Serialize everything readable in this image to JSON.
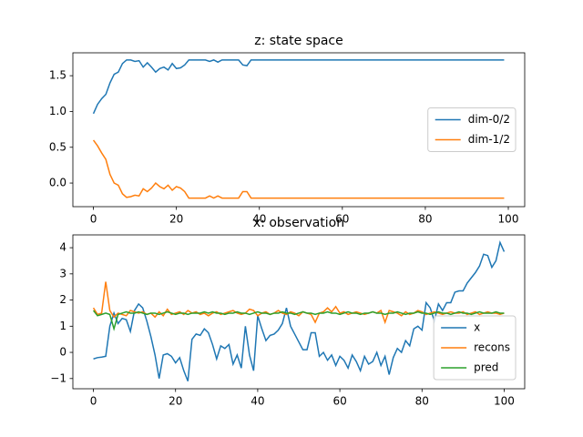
{
  "chart_data": [
    {
      "type": "line",
      "title": "z: state space",
      "x": [
        0,
        1,
        2,
        3,
        4,
        5,
        6,
        7,
        8,
        9,
        10,
        11,
        12,
        13,
        14,
        15,
        16,
        17,
        18,
        19,
        20,
        21,
        22,
        23,
        24,
        25,
        26,
        27,
        28,
        29,
        30,
        31,
        32,
        33,
        34,
        35,
        36,
        37,
        38,
        39,
        40,
        41,
        42,
        43,
        44,
        45,
        46,
        47,
        48,
        49,
        50,
        51,
        52,
        53,
        54,
        55,
        56,
        57,
        58,
        59,
        60,
        61,
        62,
        63,
        64,
        65,
        66,
        67,
        68,
        69,
        70,
        71,
        72,
        73,
        74,
        75,
        76,
        77,
        78,
        79,
        80,
        81,
        82,
        83,
        84,
        85,
        86,
        87,
        88,
        89,
        90,
        91,
        92,
        93,
        94,
        95,
        96,
        97,
        98,
        99
      ],
      "xlim": [
        -4.95,
        103.95
      ],
      "xticks": [
        0,
        20,
        40,
        60,
        80,
        100
      ],
      "ylim": [
        -0.33,
        1.82
      ],
      "yticks": [
        {
          "value": 0,
          "label": "0.0"
        },
        {
          "value": 0.5,
          "label": "0.5"
        },
        {
          "value": 1,
          "label": "1.0"
        },
        {
          "value": 1.5,
          "label": "1.5"
        }
      ],
      "legend": "center right",
      "series": [
        {
          "name": "dim-0/2",
          "color": "#1f77b4",
          "values": [
            0.97,
            1.1,
            1.18,
            1.24,
            1.4,
            1.52,
            1.55,
            1.67,
            1.72,
            1.72,
            1.7,
            1.71,
            1.62,
            1.68,
            1.62,
            1.55,
            1.6,
            1.62,
            1.58,
            1.67,
            1.6,
            1.61,
            1.65,
            1.72,
            1.72,
            1.72,
            1.72,
            1.72,
            1.7,
            1.72,
            1.69,
            1.72,
            1.72,
            1.72,
            1.72,
            1.72,
            1.65,
            1.64,
            1.72,
            1.72,
            1.72,
            1.72,
            1.72,
            1.72,
            1.72,
            1.72,
            1.72,
            1.72,
            1.72,
            1.72,
            1.72,
            1.72,
            1.72,
            1.72,
            1.72,
            1.72,
            1.72,
            1.72,
            1.72,
            1.72,
            1.72,
            1.72,
            1.72,
            1.72,
            1.72,
            1.72,
            1.72,
            1.72,
            1.72,
            1.72,
            1.72,
            1.72,
            1.72,
            1.72,
            1.72,
            1.72,
            1.72,
            1.72,
            1.72,
            1.72,
            1.72,
            1.72,
            1.72,
            1.72,
            1.72,
            1.72,
            1.72,
            1.72,
            1.72,
            1.72,
            1.72,
            1.72,
            1.72,
            1.72,
            1.72,
            1.72,
            1.72,
            1.72,
            1.72,
            1.72
          ]
        },
        {
          "name": "dim-1/2",
          "color": "#ff7f0e",
          "values": [
            0.6,
            0.52,
            0.42,
            0.33,
            0.12,
            0.0,
            -0.03,
            -0.15,
            -0.2,
            -0.19,
            -0.17,
            -0.18,
            -0.08,
            -0.12,
            -0.07,
            0.0,
            -0.05,
            -0.08,
            -0.03,
            -0.1,
            -0.05,
            -0.07,
            -0.12,
            -0.21,
            -0.21,
            -0.21,
            -0.21,
            -0.21,
            -0.18,
            -0.21,
            -0.18,
            -0.21,
            -0.21,
            -0.21,
            -0.21,
            -0.21,
            -0.12,
            -0.12,
            -0.21,
            -0.21,
            -0.21,
            -0.21,
            -0.21,
            -0.21,
            -0.21,
            -0.21,
            -0.21,
            -0.21,
            -0.21,
            -0.21,
            -0.21,
            -0.21,
            -0.21,
            -0.21,
            -0.21,
            -0.21,
            -0.21,
            -0.21,
            -0.21,
            -0.21,
            -0.21,
            -0.21,
            -0.21,
            -0.21,
            -0.21,
            -0.21,
            -0.21,
            -0.21,
            -0.21,
            -0.21,
            -0.21,
            -0.21,
            -0.21,
            -0.21,
            -0.21,
            -0.21,
            -0.21,
            -0.21,
            -0.21,
            -0.21,
            -0.21,
            -0.21,
            -0.21,
            -0.21,
            -0.21,
            -0.21,
            -0.21,
            -0.21,
            -0.21,
            -0.21,
            -0.21,
            -0.21,
            -0.21,
            -0.21,
            -0.21,
            -0.21,
            -0.21,
            -0.21,
            -0.21,
            -0.21
          ]
        }
      ]
    },
    {
      "type": "line",
      "title": "x: observation",
      "x": [
        0,
        1,
        2,
        3,
        4,
        5,
        6,
        7,
        8,
        9,
        10,
        11,
        12,
        13,
        14,
        15,
        16,
        17,
        18,
        19,
        20,
        21,
        22,
        23,
        24,
        25,
        26,
        27,
        28,
        29,
        30,
        31,
        32,
        33,
        34,
        35,
        36,
        37,
        38,
        39,
        40,
        41,
        42,
        43,
        44,
        45,
        46,
        47,
        48,
        49,
        50,
        51,
        52,
        53,
        54,
        55,
        56,
        57,
        58,
        59,
        60,
        61,
        62,
        63,
        64,
        65,
        66,
        67,
        68,
        69,
        70,
        71,
        72,
        73,
        74,
        75,
        76,
        77,
        78,
        79,
        80,
        81,
        82,
        83,
        84,
        85,
        86,
        87,
        88,
        89,
        90,
        91,
        92,
        93,
        94,
        95,
        96,
        97,
        98,
        99,
        100
      ],
      "xlim": [
        -5,
        105
      ],
      "xticks": [
        0,
        20,
        40,
        60,
        80,
        100
      ],
      "ylim": [
        -1.39,
        4.49
      ],
      "yticks": [
        {
          "value": -1,
          "label": "−1"
        },
        0,
        1,
        2,
        3,
        4
      ],
      "legend": "lower right",
      "series": [
        {
          "name": "x",
          "color": "#1f77b4",
          "values": [
            -0.25,
            -0.2,
            -0.18,
            -0.15,
            1.0,
            1.5,
            1.1,
            1.3,
            1.25,
            0.8,
            1.6,
            1.85,
            1.7,
            1.2,
            0.6,
            -0.1,
            -1.0,
            -0.1,
            -0.05,
            -0.15,
            -0.4,
            -0.2,
            -0.7,
            -1.1,
            0.5,
            0.7,
            0.65,
            0.9,
            0.75,
            0.3,
            -0.25,
            0.25,
            0.15,
            0.3,
            -0.45,
            -0.1,
            -0.6,
            1.0,
            -0.1,
            -0.7,
            1.4,
            0.9,
            0.45,
            0.65,
            0.7,
            0.85,
            1.1,
            1.7,
            1.0,
            0.7,
            0.4,
            0.1,
            0.1,
            0.75,
            0.75,
            -0.15,
            0.0,
            -0.3,
            -0.1,
            -0.5,
            -0.15,
            -0.3,
            -0.6,
            -0.1,
            -0.35,
            -0.7,
            -0.15,
            -0.45,
            -0.35,
            0.0,
            -0.5,
            -0.15,
            -0.85,
            -0.2,
            0.15,
            0.0,
            0.45,
            0.25,
            0.9,
            1.0,
            0.85,
            1.9,
            1.7,
            1.2,
            1.85,
            1.6,
            1.9,
            1.9,
            2.3,
            2.35,
            2.35,
            2.65,
            2.85,
            3.05,
            3.3,
            3.75,
            3.7,
            3.25,
            3.5,
            4.2,
            3.85
          ]
        },
        {
          "name": "recons",
          "color": "#ff7f0e",
          "values": [
            1.7,
            1.45,
            1.5,
            2.7,
            1.6,
            1.35,
            1.5,
            1.45,
            1.4,
            1.6,
            1.55,
            1.5,
            1.55,
            1.45,
            1.5,
            1.35,
            1.55,
            1.4,
            1.65,
            1.45,
            1.5,
            1.55,
            1.45,
            1.6,
            1.5,
            1.55,
            1.45,
            1.5,
            1.4,
            1.5,
            1.55,
            1.45,
            1.5,
            1.55,
            1.6,
            1.5,
            1.45,
            1.5,
            1.65,
            1.6,
            1.4,
            1.5,
            1.55,
            1.45,
            1.5,
            1.6,
            1.5,
            1.45,
            1.55,
            1.5,
            1.4,
            1.55,
            1.5,
            1.45,
            1.15,
            1.5,
            1.55,
            1.7,
            1.55,
            1.75,
            1.5,
            1.55,
            1.45,
            1.5,
            1.55,
            1.5,
            1.45,
            1.5,
            1.55,
            1.5,
            1.6,
            1.15,
            1.6,
            1.55,
            1.5,
            1.4,
            1.55,
            1.45,
            1.5,
            1.6,
            1.55,
            1.45,
            1.5,
            1.55,
            1.5,
            1.45,
            1.5,
            1.55,
            1.5,
            1.5,
            1.55,
            1.45,
            1.5,
            1.55,
            1.45,
            1.5,
            1.55,
            1.5,
            1.5,
            1.45,
            1.5
          ]
        },
        {
          "name": "pred",
          "color": "#2ca02c",
          "values": [
            1.6,
            1.4,
            1.45,
            1.5,
            1.45,
            0.9,
            1.45,
            1.5,
            1.55,
            1.5,
            1.5,
            1.55,
            1.5,
            1.45,
            1.5,
            1.5,
            1.45,
            1.5,
            1.55,
            1.5,
            1.45,
            1.5,
            1.5,
            1.45,
            1.5,
            1.5,
            1.5,
            1.55,
            1.5,
            1.55,
            1.5,
            1.5,
            1.45,
            1.5,
            1.5,
            1.55,
            1.5,
            1.5,
            1.45,
            1.5,
            1.55,
            1.5,
            1.5,
            1.45,
            1.5,
            1.5,
            1.55,
            1.5,
            1.5,
            1.45,
            1.5,
            1.55,
            1.5,
            1.5,
            1.45,
            1.5,
            1.5,
            1.55,
            1.5,
            1.5,
            1.45,
            1.5,
            1.55,
            1.5,
            1.5,
            1.45,
            1.5,
            1.5,
            1.55,
            1.5,
            1.5,
            1.45,
            1.5,
            1.5,
            1.55,
            1.5,
            1.45,
            1.5,
            1.5,
            1.55,
            1.5,
            1.5,
            1.45,
            1.5,
            1.55,
            1.5,
            1.5,
            1.45,
            1.5,
            1.55,
            1.5,
            1.5,
            1.45,
            1.5,
            1.55,
            1.5,
            1.5,
            1.5,
            1.55,
            1.5,
            1.5
          ]
        }
      ]
    }
  ]
}
